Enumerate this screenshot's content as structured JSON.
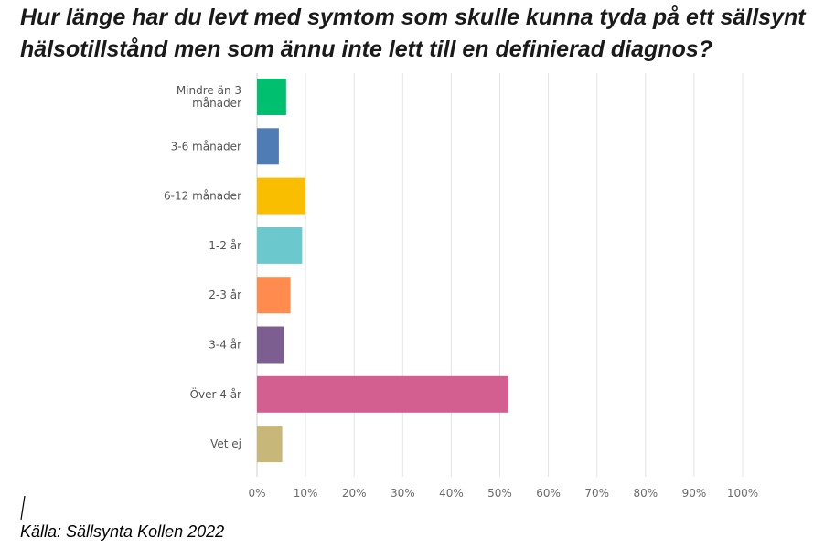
{
  "title": "Hur länge har du levt med symtom som skulle kunna tyda på ett sällsynt hälsotillstånd men som ännu inte lett till en definierad diagnos?",
  "source": "Källa: Sällsynta Kollen 2022",
  "chart_data": {
    "type": "bar",
    "orientation": "horizontal",
    "categories": [
      [
        "Mindre än 3",
        "månader"
      ],
      [
        "3-6 månader"
      ],
      [
        "6-12 månader"
      ],
      [
        "1-2 år"
      ],
      [
        "2-3 år"
      ],
      [
        "3-4 år"
      ],
      [
        "Över 4 år"
      ],
      [
        "Vet ej"
      ]
    ],
    "values": [
      6,
      4.5,
      10,
      9.3,
      6.9,
      5.5,
      51.8,
      5.2
    ],
    "colors": [
      "#00bf6f",
      "#507cb6",
      "#f9be00",
      "#6bc8cd",
      "#ff8b4f",
      "#7d5e90",
      "#d25f90",
      "#c7b879"
    ],
    "xlim": [
      0,
      100
    ],
    "xticks": [
      "0%",
      "10%",
      "20%",
      "30%",
      "40%",
      "50%",
      "60%",
      "70%",
      "80%",
      "90%",
      "100%"
    ],
    "grid": true,
    "legend": "none"
  }
}
